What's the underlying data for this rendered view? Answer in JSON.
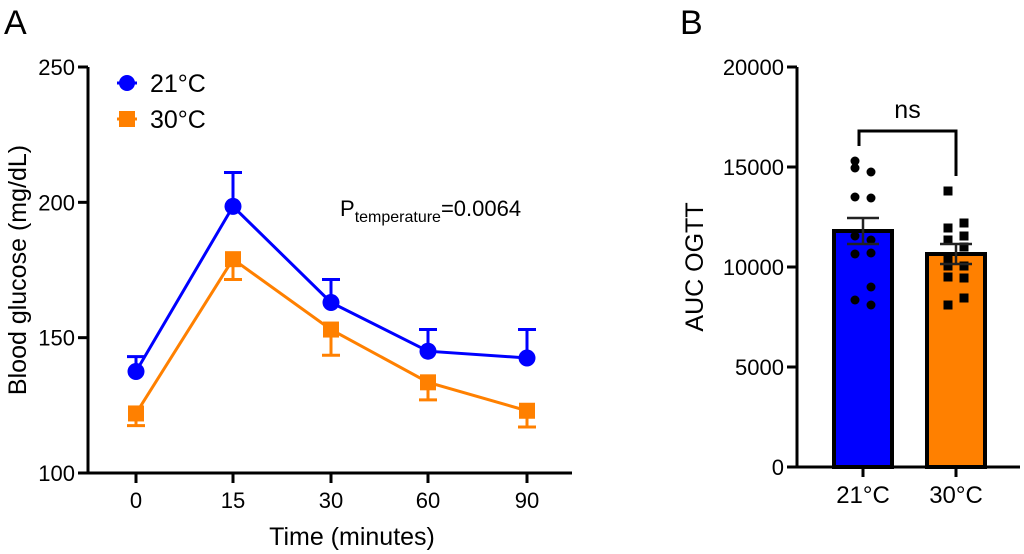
{
  "chart_data": [
    {
      "panel_label": "A",
      "type": "line",
      "title": "",
      "xlabel": "Time (minutes)",
      "ylabel": "Blood glucose (mg/dL)",
      "categories": [
        "0",
        "15",
        "30",
        "60",
        "90"
      ],
      "yticks": [
        100,
        150,
        200,
        250
      ],
      "ylim": [
        100,
        250
      ],
      "legend_position": "top-left",
      "annotation": {
        "prefix": "P",
        "subscript": "temperature",
        "suffix": "=0.0064"
      },
      "series": [
        {
          "name": "21°C",
          "color": "#0000FF",
          "marker": "circle",
          "values": [
            137.5,
            198.5,
            163,
            145,
            142.5
          ],
          "error_upper": [
            143,
            211,
            171.5,
            153,
            153
          ],
          "error_direction": "up"
        },
        {
          "name": "30°C",
          "color": "#FF8000",
          "marker": "square",
          "values": [
            122,
            179,
            153,
            133.5,
            123
          ],
          "error_lower": [
            117.5,
            171.5,
            143.5,
            127,
            117
          ],
          "error_direction": "down"
        }
      ]
    },
    {
      "panel_label": "B",
      "type": "bar",
      "title": "",
      "xlabel": "",
      "ylabel": "AUC OGTT",
      "categories": [
        "21°C",
        "30°C"
      ],
      "yticks": [
        0,
        5000,
        10000,
        15000,
        20000
      ],
      "ylim": [
        0,
        20000
      ],
      "significance": {
        "label": "ns",
        "between": [
          "21°C",
          "30°C"
        ]
      },
      "series": [
        {
          "name": "21°C",
          "color": "#0000FF",
          "marker": "circle",
          "mean": 11800,
          "sem_upper": 12450,
          "points": [
            15300,
            14750,
            14950,
            13450,
            13500,
            11350,
            11550,
            10700,
            10650,
            9000,
            8350,
            8100
          ]
        },
        {
          "name": "30°C",
          "color": "#FF8000",
          "marker": "square",
          "mean": 10650,
          "sem_upper": 11150,
          "points": [
            13800,
            12200,
            11950,
            11550,
            11350,
            11000,
            10450,
            10050,
            10050,
            9450,
            9500,
            8450,
            8100
          ]
        }
      ]
    }
  ]
}
